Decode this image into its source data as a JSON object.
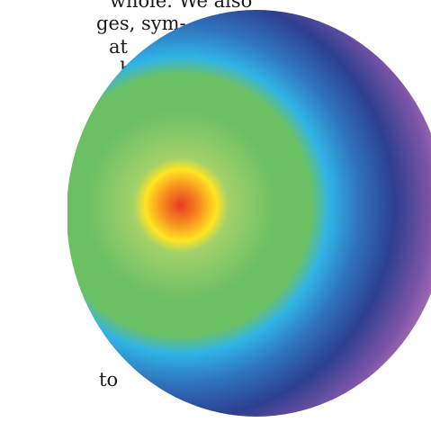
{
  "text_fragments": [
    "whole. We also",
    "ges, sym-",
    "at",
    "his",
    "to"
  ],
  "figure": {
    "shape": "radial-gradient-ellipse",
    "colors": {
      "center": "#e63a24",
      "orange": "#f6881f",
      "yellow": "#ffe523",
      "green_light": "#a4d16a",
      "green": "#6cc064",
      "cyan": "#30b4e6",
      "blue": "#2f74bd",
      "navy": "#2c3f8f",
      "violet": "#7c54a8",
      "pink": "#c27bb9",
      "purple_edge": "#6d3a96"
    }
  }
}
